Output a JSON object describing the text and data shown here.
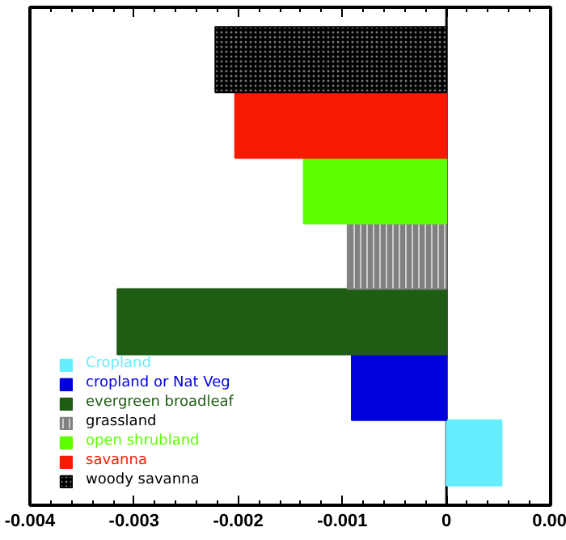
{
  "chart_data": {
    "type": "bar",
    "orientation": "horizontal",
    "categories": [
      null,
      null,
      null,
      null,
      null,
      null,
      null
    ],
    "series": [
      {
        "name": "Cropland",
        "color": "#66eeff",
        "values": [
          null,
          null,
          null,
          null,
          null,
          null,
          0.00053
        ]
      },
      {
        "name": "cropland or Nat Veg",
        "color": "#0000dd",
        "values": [
          null,
          null,
          null,
          null,
          null,
          -0.00091,
          null
        ]
      },
      {
        "name": "evergreen broadleaf",
        "color": "#1f5c14",
        "values": [
          null,
          null,
          null,
          null,
          -0.00316,
          null,
          null
        ]
      },
      {
        "name": "grassland",
        "color": "#808080",
        "values": [
          null,
          null,
          null,
          -0.00095,
          null,
          null,
          null
        ]
      },
      {
        "name": "open shrubland",
        "color": "#5eff00",
        "values": [
          null,
          null,
          -0.00137,
          null,
          null,
          null,
          null
        ]
      },
      {
        "name": "savanna",
        "color": "#f81a00",
        "values": [
          null,
          -0.00203,
          null,
          null,
          null,
          null,
          null
        ]
      },
      {
        "name": "woody savanna",
        "color": "#000000",
        "values": [
          -0.00222,
          null,
          null,
          null,
          null,
          null,
          null
        ]
      }
    ],
    "xlim": [
      -0.004,
      0.001
    ],
    "xticks": [
      -0.004,
      -0.003,
      -0.002,
      -0.001,
      0,
      {
        "value": 0.001,
        "label": "0.00"
      }
    ],
    "ref_lines": [
      {
        "axis": "x",
        "value": 0,
        "color": "#000000"
      }
    ],
    "legend": "bottom left",
    "grid": false,
    "tick_labels": "x"
  }
}
